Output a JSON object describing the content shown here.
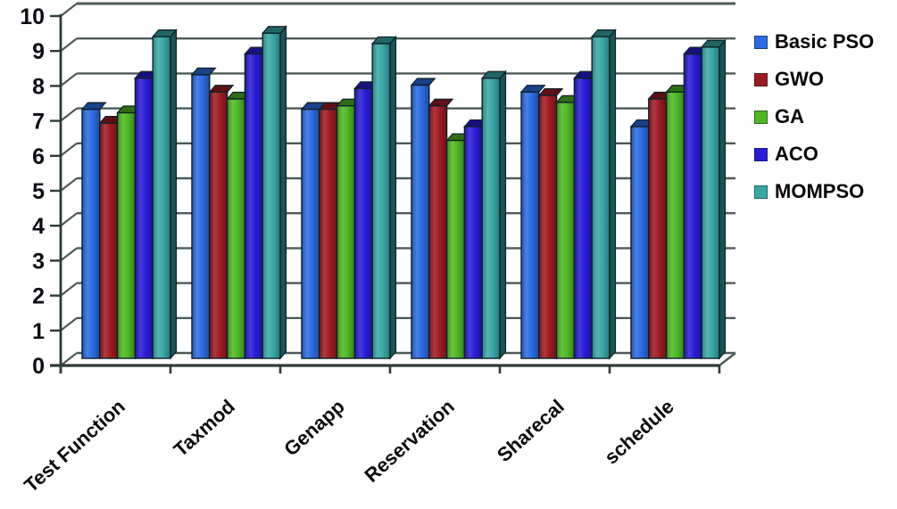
{
  "figure": {
    "background": "#ffffff",
    "kind": "3d-clustered-column-chart"
  },
  "chart_data": {
    "type": "bar",
    "style": "3d-clustered-column",
    "title": "",
    "xlabel": "",
    "ylabel": "",
    "categories": [
      "Test Function",
      "Taxmod",
      "Genapp",
      "Reservation",
      "Sharecal",
      "schedule"
    ],
    "series": [
      {
        "name": "Basic PSO",
        "color": "#2b6ae2",
        "values": [
          7.2,
          8.2,
          7.2,
          7.9,
          7.7,
          6.7
        ]
      },
      {
        "name": "GWO",
        "color": "#9e1b21",
        "values": [
          6.8,
          7.7,
          7.2,
          7.3,
          7.6,
          7.5
        ]
      },
      {
        "name": "GA",
        "color": "#4eb822",
        "values": [
          7.1,
          7.5,
          7.3,
          6.3,
          7.4,
          7.7
        ]
      },
      {
        "name": "ACO",
        "color": "#2a1cd6",
        "values": [
          8.1,
          8.8,
          7.8,
          6.7,
          8.1,
          8.8
        ]
      },
      {
        "name": "MOMPSO",
        "color": "#38a8a6",
        "values": [
          9.3,
          9.4,
          9.1,
          8.1,
          9.3,
          9.0
        ]
      }
    ],
    "ylim": [
      0,
      10
    ],
    "yticks": [
      0,
      1,
      2,
      3,
      4,
      5,
      6,
      7,
      8,
      9,
      10
    ],
    "grid": true,
    "legend_position": "right",
    "gridline_color": "#4d5a57",
    "axis_color": "#2e3a3a",
    "tick_label_color": "#0a0c12"
  }
}
